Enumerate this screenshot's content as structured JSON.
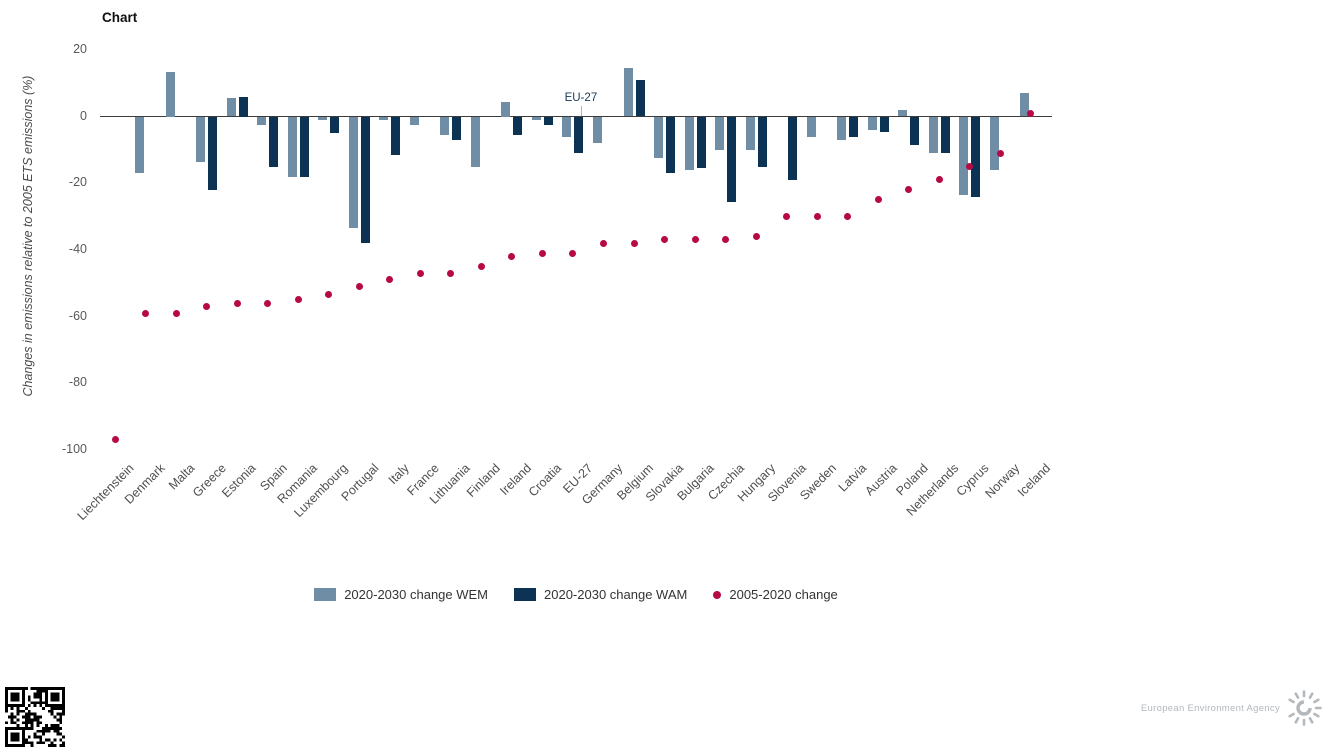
{
  "chart_data": {
    "type": "bar",
    "title": "Chart",
    "ylabel": "Changes in emissions relative to 2005 ETS emissions (%)",
    "ylim": [
      -100,
      20
    ],
    "yticks": [
      20,
      0,
      -20,
      -40,
      -60,
      -80,
      -100
    ],
    "grid": false,
    "legend_position": "bottom",
    "annotation": "EU-27",
    "categories": [
      "Liechtenstein",
      "Denmark",
      "Malta",
      "Greece",
      "Estonia",
      "Spain",
      "Romania",
      "Luxembourg",
      "Portugal",
      "Italy",
      "France",
      "Lithuania",
      "Finland",
      "Ireland",
      "Croatia",
      "EU-27",
      "Germany",
      "Belgium",
      "Slovakia",
      "Bulgaria",
      "Czechia",
      "Hungary",
      "Slovenia",
      "Sweden",
      "Latvia",
      "Austria",
      "Poland",
      "Netherlands",
      "Cyprus",
      "Norway",
      "Iceland"
    ],
    "series": [
      {
        "name": "2020-2030 change WEM",
        "type": "bar",
        "color": "#6f8da5",
        "values": [
          null,
          -17,
          13.5,
          -13.5,
          5.5,
          -2.5,
          -18,
          -1,
          -33.5,
          -1,
          -2.5,
          -5.5,
          -15,
          4.5,
          -1,
          -6,
          -8,
          14.5,
          -12.5,
          -16,
          -10,
          -10,
          null,
          -6,
          -7,
          -4,
          2,
          -11,
          -23.5,
          -16,
          7
        ]
      },
      {
        "name": "2020-2030 change WAM",
        "type": "bar",
        "color": "#0d3354",
        "values": [
          null,
          null,
          null,
          -22,
          6,
          -15,
          -18,
          -5,
          -38,
          -11.5,
          null,
          -7,
          null,
          -5.5,
          -2.5,
          -11,
          null,
          11,
          -17,
          -15.5,
          -25.5,
          -15,
          -19,
          null,
          -6,
          -4.5,
          -8.5,
          -11,
          -24,
          null,
          null
        ]
      },
      {
        "name": "2005-2020 change",
        "type": "scatter",
        "color": "#b70945",
        "values": [
          -97,
          -59,
          -59,
          -57,
          -56,
          -56,
          -55,
          -53.5,
          -51,
          -49,
          -47,
          -47,
          -45,
          -42,
          -41,
          -41,
          -38,
          -38,
          -37,
          -37,
          -37,
          -36,
          -30,
          -30,
          -30,
          -25,
          -22,
          -19,
          -15,
          -11,
          1
        ]
      }
    ]
  },
  "footer": {
    "agency": "European Environment Agency"
  }
}
